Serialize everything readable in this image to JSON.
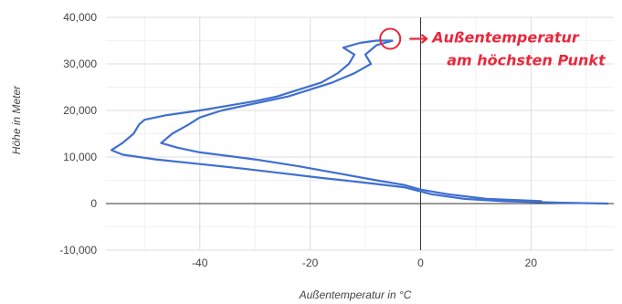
{
  "chart_data": {
    "type": "line",
    "title": "",
    "xlabel": "Außentemperatur in °C",
    "ylabel": "Höhe in Meter",
    "xlim": [
      -57,
      35
    ],
    "ylim": [
      -10000,
      40000
    ],
    "x_ticks": [
      -40,
      -20,
      0,
      20
    ],
    "y_ticks": [
      -10000,
      0,
      10000,
      20000,
      30000,
      40000
    ],
    "y_tick_labels": [
      "-10,000",
      "0",
      "10,000",
      "20,000",
      "30,000",
      "40,000"
    ],
    "grid": true,
    "legend": "none",
    "series_color": "#3f6fd0",
    "annotation_color": "#e8283c",
    "annotation": {
      "lines": [
        "Außentemperatur",
        "am höchsten Punkt"
      ],
      "target": {
        "x": -6,
        "y": 35000
      }
    },
    "series": [
      {
        "values": [
          {
            "x": 34,
            "y": 0
          },
          {
            "x": 25,
            "y": 200
          },
          {
            "x": 15,
            "y": 500
          },
          {
            "x": 8,
            "y": 1000
          },
          {
            "x": 2,
            "y": 2000
          },
          {
            "x": -3,
            "y": 3500
          },
          {
            "x": -10,
            "y": 4500
          },
          {
            "x": -18,
            "y": 5500
          },
          {
            "x": -25,
            "y": 6500
          },
          {
            "x": -32,
            "y": 7500
          },
          {
            "x": -40,
            "y": 8500
          },
          {
            "x": -48,
            "y": 9500
          },
          {
            "x": -54,
            "y": 10500
          },
          {
            "x": -56,
            "y": 11500
          },
          {
            "x": -54,
            "y": 13000
          },
          {
            "x": -52,
            "y": 15000
          },
          {
            "x": -51,
            "y": 17000
          },
          {
            "x": -50,
            "y": 18000
          },
          {
            "x": -46,
            "y": 19000
          },
          {
            "x": -40,
            "y": 20000
          },
          {
            "x": -35,
            "y": 21000
          },
          {
            "x": -30,
            "y": 22000
          },
          {
            "x": -26,
            "y": 23000
          },
          {
            "x": -22,
            "y": 24500
          },
          {
            "x": -18,
            "y": 26000
          },
          {
            "x": -15,
            "y": 28000
          },
          {
            "x": -13,
            "y": 30000
          },
          {
            "x": -12,
            "y": 32000
          },
          {
            "x": -14,
            "y": 33500
          },
          {
            "x": -11,
            "y": 34500
          },
          {
            "x": -8,
            "y": 35000
          },
          {
            "x": -5,
            "y": 35000
          }
        ]
      },
      {
        "values": [
          {
            "x": -5,
            "y": 35000
          },
          {
            "x": -8,
            "y": 34000
          },
          {
            "x": -10,
            "y": 32000
          },
          {
            "x": -9,
            "y": 30000
          },
          {
            "x": -12,
            "y": 28000
          },
          {
            "x": -16,
            "y": 26000
          },
          {
            "x": -20,
            "y": 24500
          },
          {
            "x": -24,
            "y": 23000
          },
          {
            "x": -30,
            "y": 21500
          },
          {
            "x": -36,
            "y": 20000
          },
          {
            "x": -40,
            "y": 18500
          },
          {
            "x": -42,
            "y": 17000
          },
          {
            "x": -45,
            "y": 15000
          },
          {
            "x": -47,
            "y": 13000
          },
          {
            "x": -44,
            "y": 12000
          },
          {
            "x": -40,
            "y": 11000
          },
          {
            "x": -30,
            "y": 9500
          },
          {
            "x": -22,
            "y": 8000
          },
          {
            "x": -15,
            "y": 6500
          },
          {
            "x": -8,
            "y": 5000
          },
          {
            "x": -3,
            "y": 4000
          },
          {
            "x": 0,
            "y": 3000
          },
          {
            "x": 5,
            "y": 2000
          },
          {
            "x": 12,
            "y": 1000
          },
          {
            "x": 22,
            "y": 500
          }
        ]
      }
    ]
  }
}
